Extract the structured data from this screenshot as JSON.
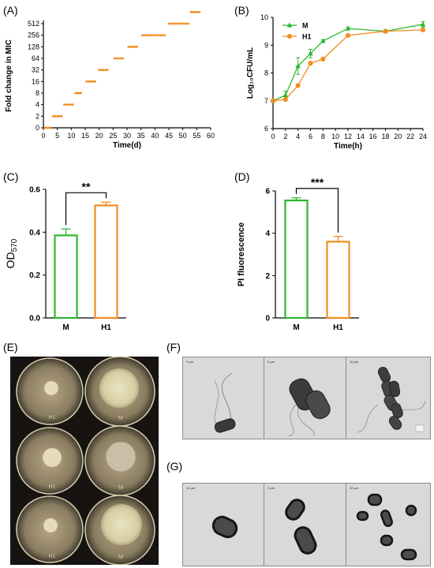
{
  "panels": {
    "A": "(A)",
    "B": "(B)",
    "C": "(C)",
    "D": "(D)",
    "E": "(E)",
    "F": "(F)",
    "G": "(G)"
  },
  "chart_data": [
    {
      "panel": "A",
      "type": "scatter",
      "xlabel": "Time(d)",
      "ylabel": "Fold change in MIC",
      "xlim": [
        0,
        60
      ],
      "xticks": [
        0,
        5,
        10,
        15,
        20,
        25,
        30,
        35,
        40,
        45,
        50,
        55,
        60
      ],
      "yticks": [
        "0",
        "2",
        "4",
        "8",
        "16",
        "32",
        "64",
        "128",
        "256",
        "512"
      ],
      "color": "#f28c1e",
      "steps": [
        {
          "level": 0,
          "x_start": 0.5,
          "x_end": 2.5
        },
        {
          "level": 1,
          "x_start": 3.5,
          "x_end": 6.5
        },
        {
          "level": 2,
          "x_start": 7.5,
          "x_end": 10.5
        },
        {
          "level": 3,
          "x_start": 11.5,
          "x_end": 13.5
        },
        {
          "level": 4,
          "x_start": 15.5,
          "x_end": 18.5
        },
        {
          "level": 5,
          "x_start": 20,
          "x_end": 23
        },
        {
          "level": 6,
          "x_start": 25.5,
          "x_end": 28.5
        },
        {
          "level": 7,
          "x_start": 30.5,
          "x_end": 33.5
        },
        {
          "level": 8,
          "x_start": 35.5,
          "x_end": 43.5
        },
        {
          "level": 9,
          "x_start": 45,
          "x_end": 52
        },
        {
          "level": 10,
          "x_start": 53,
          "x_end": 56
        }
      ]
    },
    {
      "panel": "B",
      "type": "line",
      "xlabel": "Time(h)",
      "ylabel": "Log₁₀CFU/mL",
      "xlim": [
        0,
        24
      ],
      "ylim": [
        6,
        10
      ],
      "xticks": [
        0,
        2,
        4,
        6,
        8,
        10,
        12,
        14,
        16,
        18,
        20,
        22,
        24
      ],
      "yticks": [
        6,
        7,
        8,
        9,
        10
      ],
      "legend_position": "top-left",
      "x": [
        0,
        2,
        4,
        6,
        8,
        12,
        18,
        24
      ],
      "series": [
        {
          "name": "M",
          "color": "#2db82d",
          "marker": "triangle",
          "values": [
            7.0,
            7.2,
            8.25,
            8.7,
            9.15,
            9.6,
            9.5,
            9.75
          ],
          "errors": [
            0.05,
            0.15,
            0.3,
            0.15,
            0.05,
            0.05,
            0.05,
            0.1
          ]
        },
        {
          "name": "H1",
          "color": "#f28c1e",
          "marker": "circle",
          "values": [
            7.0,
            7.05,
            7.55,
            8.35,
            8.5,
            9.35,
            9.5,
            9.55
          ],
          "errors": [
            0.05,
            0.05,
            0.05,
            0.05,
            0.05,
            0.05,
            0.05,
            0.05
          ]
        }
      ]
    },
    {
      "panel": "C",
      "type": "bar",
      "categories": [
        "M",
        "H1"
      ],
      "values": [
        0.385,
        0.525
      ],
      "errors": [
        0.03,
        0.015
      ],
      "colors": [
        "#2db82d",
        "#f28c1e"
      ],
      "ylabel": "OD570",
      "ylim": [
        0,
        0.6
      ],
      "yticks": [
        "0.0",
        "0.2",
        "0.4",
        "0.6"
      ],
      "significance": "**"
    },
    {
      "panel": "D",
      "type": "bar",
      "categories": [
        "M",
        "H1"
      ],
      "values": [
        5.55,
        3.6
      ],
      "errors": [
        0.12,
        0.25
      ],
      "colors": [
        "#2db82d",
        "#f28c1e"
      ],
      "ylabel": "PI fluorescence",
      "ylim": [
        0,
        6
      ],
      "yticks": [
        "0",
        "2",
        "4",
        "6"
      ],
      "significance": "***"
    }
  ],
  "plate_photo": {
    "plate_marks": [
      "H1",
      "M",
      "H1",
      "M",
      "H1",
      "M"
    ]
  },
  "em_panels": {
    "F": {
      "scale_labels": [
        "2 μm",
        "2 μm",
        "10 μm"
      ]
    },
    "G": {
      "scale_labels": [
        "10 μm",
        "2 μm",
        "10 μm"
      ]
    }
  }
}
